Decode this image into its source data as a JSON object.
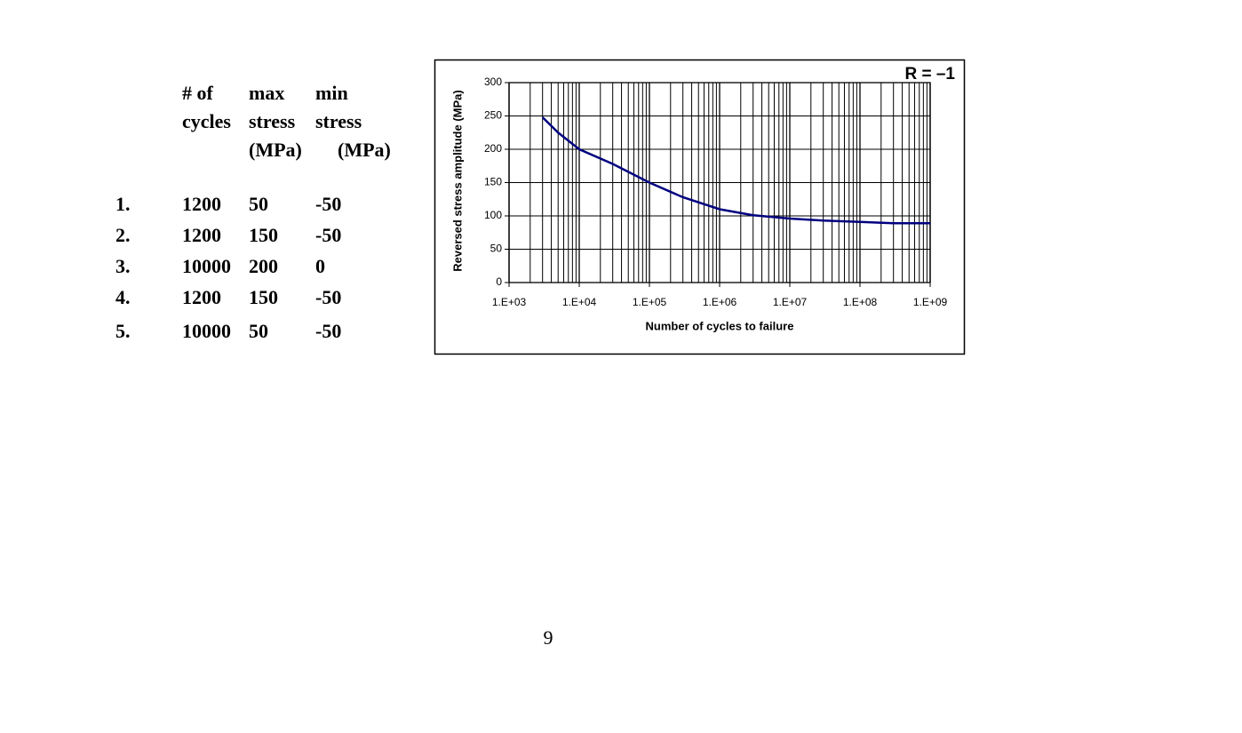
{
  "table": {
    "header": [
      [
        "# of",
        "cycles"
      ],
      [
        "max",
        "stress",
        "(MPa)"
      ],
      [
        "min",
        "stress",
        "(MPa)"
      ]
    ],
    "rows": [
      [
        "1.",
        "1200",
        "50",
        "-50"
      ],
      [
        "2.",
        "1200",
        "150",
        "-50"
      ],
      [
        "3.",
        "10000",
        "200",
        "0"
      ],
      [
        "4.",
        "1200",
        "150",
        "-50"
      ],
      [
        "5.",
        "10000",
        "50",
        "-50"
      ]
    ]
  },
  "chart_data": {
    "type": "line",
    "annotation": "R = –1",
    "x_label": "Number of cycles to failure",
    "y_label": "Reversed stress amplitude (MPa)",
    "x": [
      3000,
      5000,
      10000,
      30000,
      100000,
      300000,
      1000000,
      3000000,
      10000000,
      30000000,
      100000000,
      300000000,
      1000000000
    ],
    "series": [
      {
        "name": "R = -1",
        "color": "#000080",
        "values": [
          248,
          225,
          200,
          178,
          150,
          128,
          110,
          101,
          96,
          93,
          91,
          89,
          89
        ]
      }
    ],
    "xscale": "log",
    "xlim": [
      1000,
      1000000000
    ],
    "xticks": [
      {
        "value": 1000,
        "label": "1.E+03"
      },
      {
        "value": 10000,
        "label": "1.E+04"
      },
      {
        "value": 100000,
        "label": "1.E+05"
      },
      {
        "value": 1000000,
        "label": "1.E+06"
      },
      {
        "value": 10000000,
        "label": "1.E+07"
      },
      {
        "value": 100000000,
        "label": "1.E+08"
      },
      {
        "value": 1000000000,
        "label": "1.E+09"
      }
    ],
    "ylim": [
      0,
      300
    ],
    "yticks": [
      0,
      50,
      100,
      150,
      200,
      250,
      300
    ],
    "grid": true
  },
  "page_number": "9"
}
